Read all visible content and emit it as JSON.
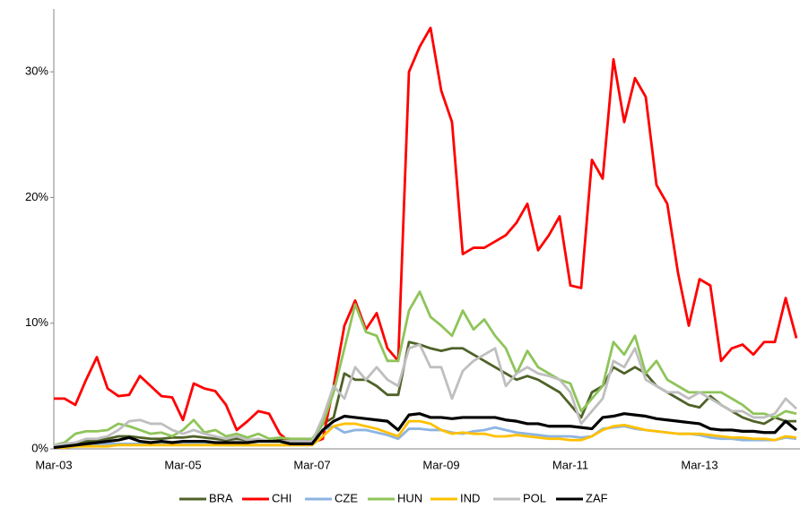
{
  "chart_data": {
    "type": "line",
    "categories": [
      "Mar-03",
      null,
      null,
      null,
      null,
      null,
      null,
      null,
      null,
      null,
      null,
      null,
      "Mar-05",
      null,
      null,
      null,
      null,
      null,
      null,
      null,
      null,
      null,
      null,
      null,
      "Mar-07",
      null,
      null,
      null,
      null,
      null,
      null,
      null,
      null,
      null,
      null,
      null,
      "Mar-09",
      null,
      null,
      null,
      null,
      null,
      null,
      null,
      null,
      null,
      null,
      null,
      "Mar-11",
      null,
      null,
      null,
      null,
      null,
      null,
      null,
      null,
      null,
      null,
      null,
      "Mar-13",
      null,
      null,
      null,
      null,
      null,
      null,
      null,
      null,
      null
    ],
    "ylim": [
      0,
      35
    ],
    "yticks": [
      {
        "value": 0,
        "label": "0%"
      },
      {
        "value": 10,
        "label": "10%"
      },
      {
        "value": 20,
        "label": "20%"
      },
      {
        "value": 30,
        "label": "30%"
      }
    ],
    "grid": false,
    "legend": "bottom",
    "series": [
      {
        "name": "BRA",
        "color": "#4f6228",
        "values": [
          0.2,
          0.3,
          0.5,
          0.6,
          0.7,
          0.8,
          1,
          1,
          0.9,
          0.8,
          0.8,
          0.9,
          0.9,
          1,
          0.9,
          0.8,
          0.7,
          0.8,
          0.7,
          0.7,
          0.6,
          0.7,
          0.7,
          0.6,
          0.7,
          2,
          2.5,
          6,
          5.5,
          5.5,
          5,
          4.3,
          4.3,
          8.5,
          8.3,
          8,
          7.8,
          8,
          8,
          7.5,
          7,
          6.5,
          6,
          5.5,
          5.8,
          5.5,
          5,
          4.5,
          3.5,
          2.5,
          4.5,
          5,
          6.5,
          6,
          6.5,
          6,
          5,
          4.5,
          4,
          3.5,
          3.3,
          4.2,
          3.5,
          3,
          2.5,
          2.2,
          2,
          2.5,
          2.2,
          2.2
        ]
      },
      {
        "name": "CHI",
        "color": "#ff0000",
        "values": [
          4,
          4,
          3.5,
          5.5,
          7.3,
          4.8,
          4.2,
          4.3,
          5.8,
          5,
          4.2,
          4.1,
          2.3,
          5.2,
          4.8,
          4.6,
          3.5,
          1.5,
          2.2,
          3,
          2.8,
          1.2,
          0.5,
          0.5,
          0.5,
          0.8,
          5,
          9.8,
          11.8,
          9.5,
          10.8,
          8,
          7,
          30,
          32,
          33.5,
          28.5,
          26,
          15.5,
          16,
          16,
          16.5,
          17,
          18,
          19.5,
          15.8,
          17,
          18.5,
          13,
          12.8,
          23,
          21.5,
          31,
          26,
          29.5,
          28,
          21,
          19.5,
          14,
          9.8,
          13.5,
          13,
          7,
          8,
          8.3,
          7.5,
          8.5,
          8.5,
          12,
          8.8
        ]
      },
      {
        "name": "CZE",
        "color": "#8db4e2",
        "values": [
          0.2,
          0.2,
          0.3,
          0.3,
          0.3,
          0.4,
          0.4,
          0.4,
          0.4,
          0.4,
          0.4,
          0.4,
          0.4,
          0.4,
          0.4,
          0.4,
          0.3,
          0.3,
          0.3,
          0.3,
          0.3,
          0.3,
          0.3,
          0.3,
          0.3,
          1.5,
          1.8,
          1.3,
          1.5,
          1.5,
          1.3,
          1.1,
          0.8,
          1.6,
          1.6,
          1.5,
          1.5,
          1.3,
          1.2,
          1.4,
          1.5,
          1.7,
          1.5,
          1.3,
          1.2,
          1.1,
          1,
          1,
          1,
          0.9,
          1,
          1.6,
          1.7,
          1.8,
          1.6,
          1.5,
          1.4,
          1.3,
          1.2,
          1.2,
          1.1,
          0.9,
          0.8,
          0.8,
          0.7,
          0.7,
          0.7,
          0.7,
          0.9,
          0.8
        ]
      },
      {
        "name": "HUN",
        "color": "#8fc45a",
        "values": [
          0.3,
          0.5,
          1.2,
          1.4,
          1.4,
          1.5,
          2,
          1.8,
          1.5,
          1.2,
          1.3,
          1,
          1.5,
          2.3,
          1.3,
          1.5,
          1,
          1.2,
          0.9,
          1.2,
          0.8,
          0.9,
          0.8,
          0.8,
          0.8,
          2,
          4.5,
          8,
          11.5,
          9.3,
          9,
          7,
          7,
          11,
          12.5,
          10.5,
          9.8,
          9,
          11,
          9.5,
          10.3,
          9,
          8,
          6,
          7.8,
          6.5,
          6,
          5.5,
          5.2,
          3,
          4,
          5,
          8.5,
          7.5,
          9,
          6,
          7,
          5.5,
          5,
          4.5,
          4.5,
          4.5,
          4.5,
          4,
          3.5,
          2.8,
          2.8,
          2.5,
          3,
          2.8
        ]
      },
      {
        "name": "IND",
        "color": "#ffc000",
        "values": [
          0.1,
          0.1,
          0.2,
          0.2,
          0.2,
          0.2,
          0.3,
          0.3,
          0.3,
          0.3,
          0.3,
          0.3,
          0.3,
          0.3,
          0.3,
          0.3,
          0.3,
          0.3,
          0.3,
          0.3,
          0.3,
          0.3,
          0.3,
          0.3,
          0.3,
          1,
          1.8,
          2,
          2,
          1.8,
          1.6,
          1.3,
          1,
          2.2,
          2.2,
          2,
          1.5,
          1.2,
          1.3,
          1.2,
          1.2,
          1,
          1,
          1.1,
          1,
          0.9,
          0.8,
          0.8,
          0.7,
          0.7,
          1,
          1.5,
          1.8,
          1.9,
          1.7,
          1.5,
          1.4,
          1.3,
          1.2,
          1.2,
          1.2,
          1.1,
          1,
          0.9,
          0.9,
          0.8,
          0.8,
          0.7,
          1,
          0.9
        ]
      },
      {
        "name": "POL",
        "color": "#bfbfbf",
        "values": [
          0.3,
          0.4,
          0.5,
          0.8,
          0.8,
          1,
          1.5,
          2.2,
          2.3,
          2,
          2,
          1.5,
          1.2,
          1.5,
          1.2,
          1,
          0.8,
          1,
          0.7,
          0.8,
          0.6,
          0.6,
          0.6,
          0.6,
          0.6,
          2.5,
          5,
          4,
          6.5,
          5.5,
          6.5,
          5.5,
          5,
          8,
          8.3,
          6.5,
          6.5,
          4,
          6.2,
          7,
          7.5,
          8,
          5,
          6,
          6.5,
          6,
          5.8,
          5.5,
          4.5,
          2,
          3,
          4,
          7,
          6.5,
          8,
          5.5,
          5,
          4.5,
          4.5,
          4,
          4.5,
          4,
          3.5,
          3,
          3,
          2.5,
          2.5,
          2.8,
          4,
          3.2
        ]
      },
      {
        "name": "ZAF",
        "color": "#000000",
        "values": [
          0.1,
          0.2,
          0.3,
          0.4,
          0.5,
          0.6,
          0.7,
          0.9,
          0.6,
          0.5,
          0.6,
          0.5,
          0.6,
          0.6,
          0.6,
          0.5,
          0.5,
          0.5,
          0.5,
          0.6,
          0.6,
          0.6,
          0.4,
          0.4,
          0.4,
          1.5,
          2.2,
          2.6,
          2.5,
          2.4,
          2.3,
          2.2,
          1.5,
          2.7,
          2.8,
          2.5,
          2.5,
          2.4,
          2.5,
          2.5,
          2.5,
          2.5,
          2.3,
          2.2,
          2,
          2,
          1.8,
          1.8,
          1.8,
          1.7,
          1.6,
          2.5,
          2.6,
          2.8,
          2.7,
          2.6,
          2.4,
          2.3,
          2.2,
          2.1,
          2,
          1.6,
          1.5,
          1.5,
          1.4,
          1.4,
          1.3,
          1.3,
          2.2,
          1.5
        ]
      }
    ]
  }
}
